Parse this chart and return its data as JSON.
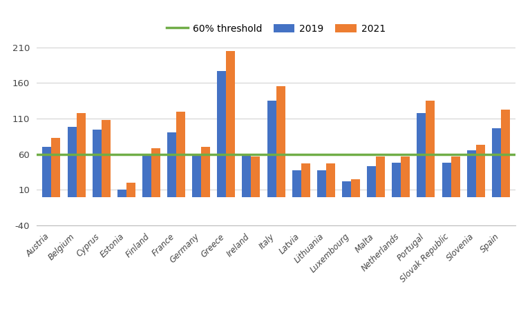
{
  "countries": [
    "Austria",
    "Belgium",
    "Cyprus",
    "Estonia",
    "Finland",
    "France",
    "Germany",
    "Greece",
    "Ireland",
    "Italy",
    "Latvia",
    "Lithuania",
    "Luxembourg",
    "Malta",
    "Netherlands",
    "Portugal",
    "Slovak Republic",
    "Slovenia",
    "Spain"
  ],
  "values_2019": [
    70,
    98,
    94,
    10,
    59,
    91,
    59,
    177,
    59,
    135,
    37,
    37,
    22,
    43,
    48,
    118,
    48,
    65,
    96
  ],
  "values_2021": [
    83,
    118,
    108,
    20,
    68,
    120,
    70,
    205,
    57,
    155,
    47,
    47,
    25,
    57,
    57,
    135,
    57,
    73,
    122
  ],
  "threshold": 60,
  "color_2019": "#4472C4",
  "color_2021": "#ED7D31",
  "color_threshold": "#70AD47",
  "ylim_min": -40,
  "ylim_max": 228,
  "yticks": [
    -40,
    10,
    60,
    110,
    160,
    210
  ],
  "bar_width": 0.36,
  "legend_labels": [
    "2019",
    "2021",
    "60% threshold"
  ],
  "background_color": "#ffffff",
  "grid_color": "#d3d3d3"
}
